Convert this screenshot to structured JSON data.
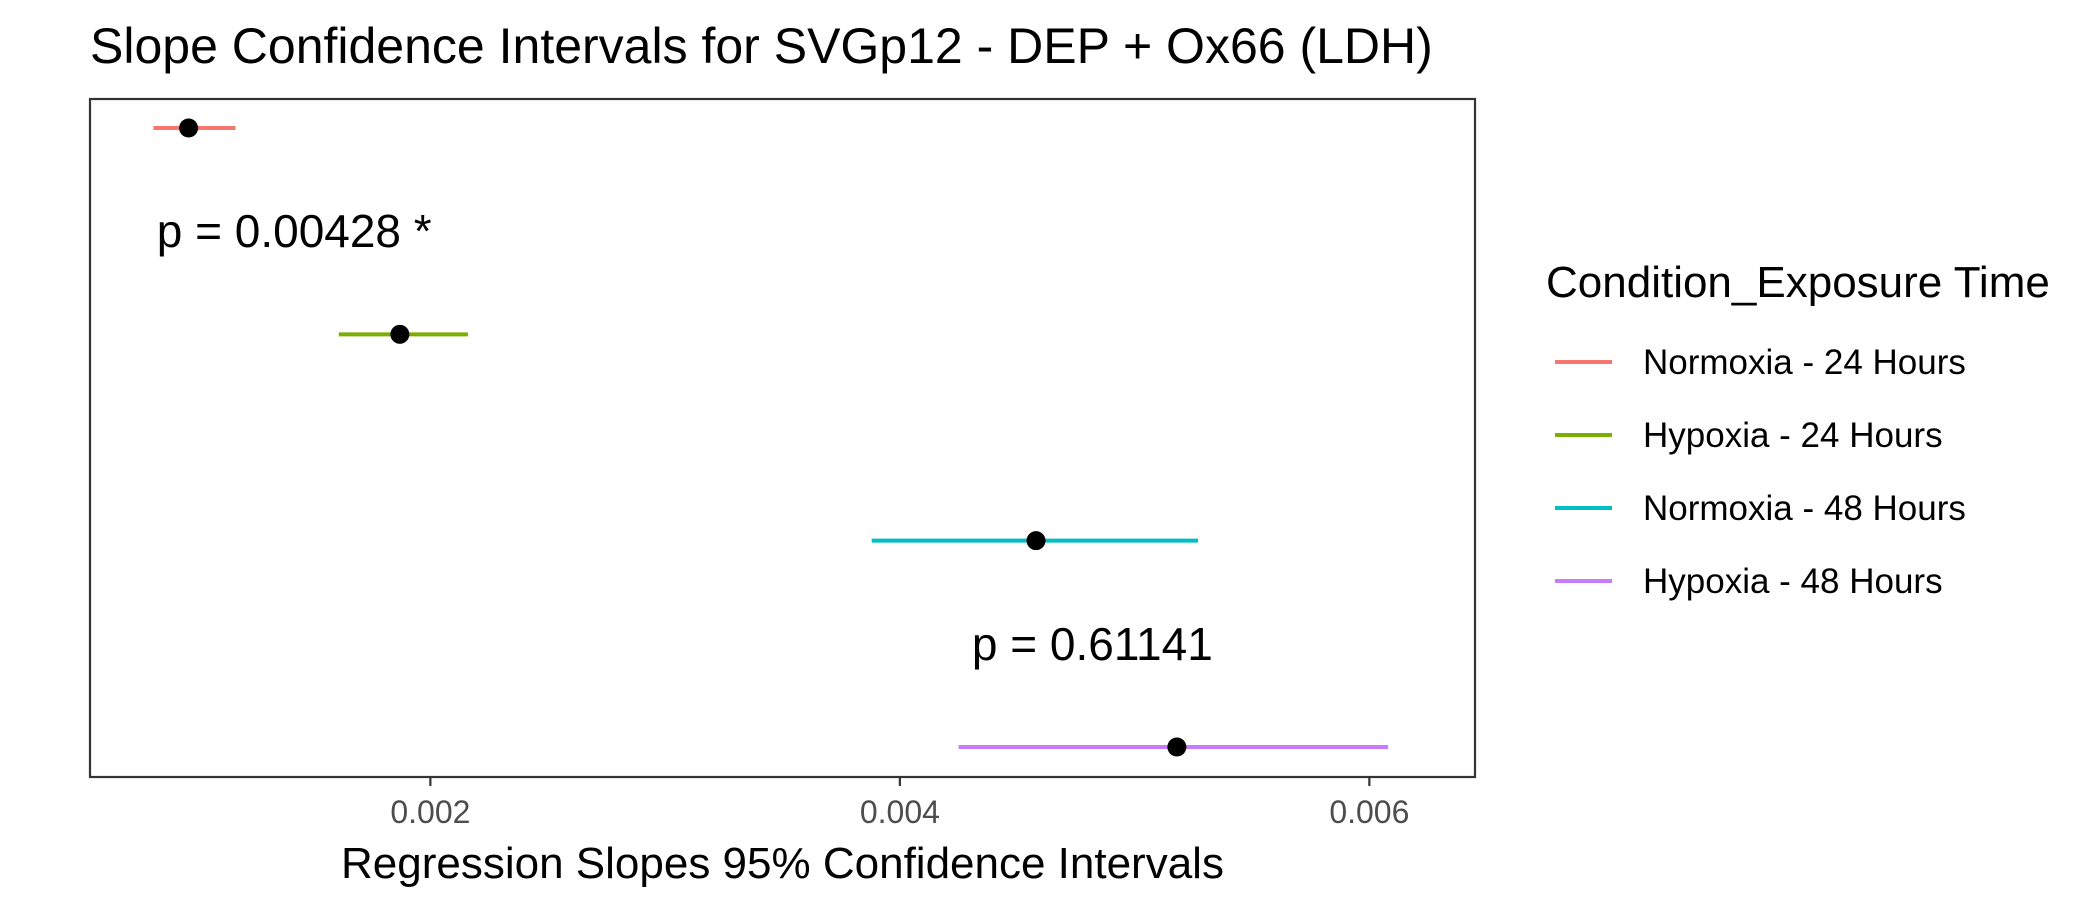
{
  "chart_data": {
    "type": "errorbar",
    "title": "Slope Confidence Intervals for SVGp12 - DEP + Ox66 (LDH)",
    "xlabel": "Regression Slopes 95% Confidence Intervals",
    "ylabel": "",
    "xlim": [
      0.00055,
      0.00645
    ],
    "x_ticks": [
      0.002,
      0.004,
      0.006
    ],
    "x_tick_labels": [
      "0.002",
      "0.004",
      "0.006"
    ],
    "grid": false,
    "legend": {
      "title": "Condition_Exposure Time",
      "position": "right"
    },
    "series": [
      {
        "name": "Normoxia - 24 Hours",
        "color": "#F8766D",
        "estimate": 0.00097,
        "lower": 0.00082,
        "upper": 0.00117
      },
      {
        "name": "Hypoxia - 24 Hours",
        "color": "#7CAE00",
        "estimate": 0.00187,
        "lower": 0.00161,
        "upper": 0.00216
      },
      {
        "name": "Normoxia - 48 Hours",
        "color": "#00BFC4",
        "estimate": 0.00458,
        "lower": 0.00388,
        "upper": 0.00527
      },
      {
        "name": "Hypoxia - 48 Hours",
        "color": "#C77CFF",
        "estimate": 0.00518,
        "lower": 0.00425,
        "upper": 0.00608
      }
    ],
    "annotations": [
      {
        "text": "p = 0.00428 *",
        "x": 0.00142,
        "between": [
          "Normoxia - 24 Hours",
          "Hypoxia - 24 Hours"
        ]
      },
      {
        "text": "p = 0.61141",
        "x": 0.00482,
        "between": [
          "Normoxia - 48 Hours",
          "Hypoxia - 48 Hours"
        ]
      }
    ]
  }
}
